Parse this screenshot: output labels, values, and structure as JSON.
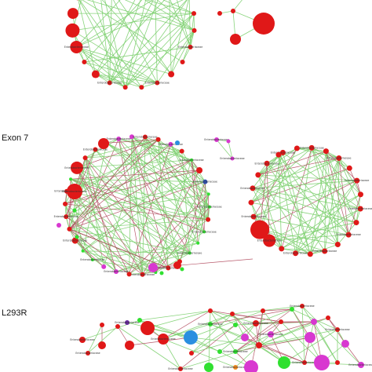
{
  "colors": {
    "background": "#ffffff",
    "edge_positive": "#7ccf6e",
    "edge_negative": "#b0485c",
    "node_red": "#e01818",
    "node_magenta": "#d838d0",
    "node_green": "#30e030",
    "node_blue": "#2a8fe0",
    "node_navy": "#3050b0",
    "node_purple": "#6a2aa0",
    "node_orange": "#f08a20"
  },
  "panels": [
    {
      "id": "top",
      "label": ""
    },
    {
      "id": "exon7",
      "label": "Exon 7"
    },
    {
      "id": "l293r",
      "label": "L293R"
    }
  ],
  "node_labels": {
    "generic": "Enterobacteriaceae"
  }
}
